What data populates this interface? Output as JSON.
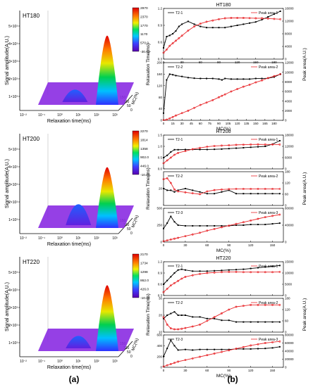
{
  "left_panels": [
    {
      "id": "HT180",
      "label": "HT180",
      "colorbar_ticks": [
        "2970",
        "2370",
        "1770",
        "1170",
        "570.0",
        "-30.00"
      ],
      "peak_height": 0.82,
      "small_peak_height": 0.16,
      "small_x": 0.32
    },
    {
      "id": "HT200",
      "label": "HT200",
      "colorbar_ticks": [
        "2270",
        "1814",
        "1358",
        "902.0",
        "446.0",
        "-10.00"
      ],
      "peak_height": 0.72,
      "small_peak_height": 0.27,
      "small_x": 0.36
    },
    {
      "id": "HT220",
      "label": "HT220",
      "colorbar_ticks": [
        "2170",
        "1734",
        "1298",
        "862.0",
        "426.0",
        "-10.00"
      ],
      "peak_height": 0.78,
      "small_peak_height": 0.16,
      "small_x": 0.36
    }
  ],
  "left_common": {
    "ylabel": "Signal amplitude(A.U.)",
    "xlabel": "Relaxation time(ms)",
    "mc_label": "MC(%)",
    "y_ticks": [
      "5×10³",
      "4×10³",
      "3×10³",
      "2×10³",
      "1×10³"
    ],
    "x_ticks": [
      "10⁻²",
      "10⁻¹",
      "10⁰",
      "10¹",
      "10²",
      "10³"
    ],
    "mc_ticks": [
      "150",
      "100",
      "50",
      "0"
    ]
  },
  "right_common": {
    "xlabel": "MC(%)",
    "ylabel_left": "Relaxation Time(ms)",
    "ylabel_right": "Peak area(A.U.)"
  },
  "panel_labels": {
    "a": "(a)",
    "b": "(b)"
  },
  "chart_data": [
    {
      "type": "line",
      "title": "HT180",
      "subplot": "T2-1",
      "x": [
        0,
        5,
        10,
        15,
        20,
        25,
        30,
        40,
        50,
        60,
        70,
        80,
        90,
        100,
        110,
        120,
        130,
        140,
        150,
        160,
        170,
        180,
        190
      ],
      "series": [
        {
          "name": "T2-1",
          "axis": "left",
          "values": [
            0.5,
            0.7,
            0.72,
            0.75,
            0.8,
            0.88,
            0.92,
            0.97,
            0.92,
            0.88,
            0.86,
            0.86,
            0.86,
            0.86,
            0.88,
            0.9,
            0.92,
            0.94,
            0.96,
            1.0,
            1.05,
            1.1,
            1.15
          ]
        },
        {
          "name": "Peak area-1",
          "axis": "right",
          "values": [
            2000,
            3000,
            4200,
            5000,
            5800,
            6600,
            7400,
            9000,
            10300,
            11200,
            11800,
            12200,
            12600,
            12900,
            13000,
            13000,
            13000,
            12950,
            12900,
            12900,
            12800,
            12700,
            12600
          ]
        }
      ],
      "ylim_left": [
        0.3,
        1.2
      ],
      "yticks_left": [
        "0.3",
        "0.6",
        "0.9",
        "1.2"
      ],
      "ylim_right": [
        0,
        16000
      ],
      "yticks_right": [
        "0",
        "4000",
        "8000",
        "12000",
        "16000"
      ],
      "xlim": [
        0,
        195
      ],
      "xticks": [
        0,
        30,
        60,
        90,
        120,
        150,
        180
      ]
    },
    {
      "type": "line",
      "title": "",
      "subplot": "T2-2",
      "x": [
        0,
        5,
        10,
        15,
        20,
        30,
        40,
        50,
        60,
        70,
        80,
        90,
        95,
        100,
        110,
        120,
        130,
        140,
        150,
        160,
        170,
        180,
        190
      ],
      "series": [
        {
          "name": "T2-2",
          "axis": "left",
          "values": [
            25,
            140,
            160,
            158,
            155,
            152,
            148,
            146,
            145,
            145,
            145,
            143,
            140,
            145,
            143,
            143,
            143,
            143,
            145,
            145,
            146,
            150,
            160
          ]
        },
        {
          "name": "Peak area-2",
          "axis": "right",
          "values": [
            50,
            150,
            400,
            700,
            1000,
            1500,
            2000,
            2600,
            3200,
            3700,
            4200,
            4800,
            5100,
            5400,
            6000,
            6500,
            7000,
            7400,
            7900,
            8300,
            8800,
            9200,
            9600
          ]
        }
      ],
      "ylim_left": [
        0,
        200
      ],
      "yticks_left": [
        "0",
        "40",
        "80",
        "120",
        "160",
        "200"
      ],
      "ylim_right": [
        0,
        12000
      ],
      "yticks_right": [
        "0",
        "2000",
        "4000",
        "6000",
        "8000",
        "10000",
        "12000"
      ],
      "xlim": [
        0,
        195
      ],
      "xticks": [
        0,
        15,
        30,
        45,
        60,
        75,
        90,
        105,
        120,
        135,
        150,
        165,
        180
      ]
    },
    {
      "type": "line",
      "title": "HT200",
      "subplot": "T2-1",
      "x": [
        0,
        5,
        10,
        15,
        20,
        30,
        40,
        50,
        60,
        70,
        80,
        90,
        100,
        110,
        120,
        130,
        140,
        150,
        160
      ],
      "series": [
        {
          "name": "T2-1",
          "axis": "left",
          "values": [
            0.5,
            0.6,
            0.75,
            0.85,
            0.85,
            0.86,
            0.86,
            0.86,
            0.86,
            0.87,
            0.88,
            0.9,
            0.92,
            0.94,
            0.96,
            0.98,
            1.0,
            1.1,
            1.25
          ]
        },
        {
          "name": "Peak area-1",
          "axis": "right",
          "values": [
            3000,
            4500,
            6000,
            7500,
            8500,
            9500,
            10500,
            11200,
            11800,
            12200,
            12400,
            12600,
            12800,
            12900,
            13000,
            13050,
            13000,
            13000,
            13000
          ]
        }
      ],
      "ylim_left": [
        0.0,
        1.5
      ],
      "yticks_left": [
        "0.0",
        "0.5",
        "1.0",
        "1.5"
      ],
      "ylim_right": [
        0,
        18000
      ],
      "yticks_right": [
        "0",
        "6000",
        "12000",
        "18000"
      ],
      "xlim": [
        0,
        165
      ],
      "xticks": [
        0,
        30,
        60,
        90,
        120,
        150
      ]
    },
    {
      "type": "line",
      "title": "",
      "subplot": "T2-2",
      "x": [
        0,
        5,
        10,
        15,
        20,
        30,
        40,
        50,
        60,
        70,
        80,
        90,
        100,
        110,
        120,
        130,
        140,
        150,
        160
      ],
      "series": [
        {
          "name": "T2-2",
          "axis": "left",
          "values": [
            20,
            19,
            19,
            18,
            19,
            20,
            19,
            18,
            17,
            17,
            18,
            19,
            17,
            17,
            17,
            17,
            17,
            17,
            17
          ]
        },
        {
          "name": "Peak area-2",
          "axis": "right",
          "values": [
            140,
            145,
            120,
            85,
            75,
            70,
            65,
            60,
            75,
            82,
            85,
            87,
            88,
            88,
            88,
            88,
            88,
            88,
            88
          ]
        }
      ],
      "ylim_left": [
        10,
        30
      ],
      "yticks_left": [
        "20"
      ],
      "ylim_right": [
        0,
        180
      ],
      "yticks_right": [
        "0",
        "60",
        "120",
        "180"
      ],
      "xlim": [
        0,
        165
      ],
      "xticks": [
        0,
        30,
        60,
        90,
        120,
        150
      ]
    },
    {
      "type": "line",
      "title": "",
      "subplot": "T2-3",
      "x": [
        0,
        5,
        10,
        15,
        20,
        30,
        40,
        50,
        60,
        70,
        80,
        90,
        100,
        110,
        120,
        130,
        140,
        150,
        160
      ],
      "series": [
        {
          "name": "T2-3",
          "axis": "left",
          "values": [
            200,
            280,
            380,
            300,
            250,
            240,
            240,
            240,
            240,
            240,
            240,
            240,
            250,
            250,
            260,
            260,
            260,
            270,
            280
          ]
        },
        {
          "name": "Peak area-3",
          "axis": "right",
          "values": [
            2000,
            4000,
            6000,
            8000,
            10000,
            14000,
            18000,
            22000,
            27000,
            31000,
            35000,
            39000,
            43000,
            47000,
            51000,
            55000,
            59000,
            62000,
            65000
          ]
        }
      ],
      "ylim_left": [
        0,
        500
      ],
      "yticks_left": [
        "0",
        "250",
        "500"
      ],
      "ylim_right": [
        0,
        80000
      ],
      "yticks_right": [
        "0",
        "40000",
        "80000"
      ],
      "xlim": [
        0,
        165
      ],
      "xticks": [
        0,
        30,
        60,
        90,
        120,
        150
      ]
    },
    {
      "type": "line",
      "title": "HT220",
      "subplot": "T2-1",
      "x": [
        0,
        5,
        10,
        15,
        20,
        25,
        30,
        40,
        50,
        60,
        70,
        80,
        90,
        100,
        110,
        120,
        130,
        140,
        150,
        160
      ],
      "series": [
        {
          "name": "T2-1",
          "axis": "left",
          "values": [
            0.6,
            0.7,
            0.8,
            0.9,
            0.98,
            1.0,
            0.98,
            0.95,
            0.95,
            0.95,
            0.96,
            0.97,
            0.98,
            0.99,
            1.0,
            1.02,
            1.04,
            1.06,
            1.08,
            1.1
          ]
        },
        {
          "name": "Peak area-1",
          "axis": "right",
          "values": [
            1500,
            3000,
            4500,
            5500,
            6500,
            7500,
            8300,
            9000,
            9600,
            10000,
            10200,
            10400,
            10500,
            10500,
            10400,
            10400,
            10400,
            10400,
            10400,
            10500
          ]
        }
      ],
      "ylim_left": [
        0.3,
        1.2
      ],
      "yticks_left": [
        "0.3",
        "0.6",
        "0.9",
        "1.2"
      ],
      "ylim_right": [
        0,
        15000
      ],
      "yticks_right": [
        "0",
        "5000",
        "10000",
        "15000"
      ],
      "xlim": [
        0,
        165
      ],
      "xticks": [
        0,
        30,
        60,
        90,
        120,
        150
      ]
    },
    {
      "type": "line",
      "title": "",
      "subplot": "T2-2",
      "x": [
        0,
        5,
        10,
        15,
        20,
        25,
        30,
        40,
        50,
        60,
        70,
        80,
        90,
        100,
        110,
        120,
        130,
        140,
        150,
        160
      ],
      "series": [
        {
          "name": "T2-2",
          "axis": "left",
          "values": [
            18,
            20,
            21,
            22,
            20,
            20,
            20,
            19,
            19,
            18,
            18,
            17,
            17,
            16,
            16,
            16,
            16,
            16,
            16,
            16
          ]
        },
        {
          "name": "Peak area-2",
          "axis": "right",
          "values": [
            80,
            40,
            20,
            15,
            15,
            18,
            22,
            30,
            40,
            60,
            80,
            100,
            120,
            135,
            140,
            145,
            145,
            145,
            145,
            145
          ]
        }
      ],
      "ylim_left": [
        10,
        30
      ],
      "yticks_left": [
        "10",
        "20",
        "30"
      ],
      "ylim_right": [
        0,
        180
      ],
      "yticks_right": [
        "0",
        "60",
        "120",
        "180"
      ],
      "xlim": [
        0,
        165
      ],
      "xticks": [
        0,
        30,
        60,
        90,
        120,
        150
      ]
    },
    {
      "type": "line",
      "title": "",
      "subplot": "T2-3",
      "x": [
        0,
        5,
        10,
        15,
        20,
        30,
        40,
        50,
        60,
        70,
        80,
        90,
        100,
        110,
        120,
        130,
        140,
        150,
        160
      ],
      "series": [
        {
          "name": "T2-3",
          "axis": "left",
          "values": [
            200,
            350,
            500,
            400,
            320,
            330,
            320,
            330,
            330,
            330,
            330,
            330,
            340,
            340,
            340,
            345,
            350,
            360,
            380
          ]
        },
        {
          "name": "Peak area-3",
          "axis": "right",
          "values": [
            2000,
            5000,
            8000,
            11000,
            14000,
            18000,
            22000,
            26000,
            30000,
            34000,
            38000,
            42000,
            46000,
            50000,
            54000,
            57000,
            60000,
            62000,
            64000
          ]
        }
      ],
      "ylim_left": [
        0,
        600
      ],
      "yticks_left": [
        "0",
        "200",
        "400",
        "600"
      ],
      "ylim_right": [
        0,
        80000
      ],
      "yticks_right": [
        "0",
        "20000",
        "40000",
        "60000",
        "80000"
      ],
      "xlim": [
        0,
        165
      ],
      "xticks": [
        0,
        30,
        60,
        90,
        120,
        150
      ]
    }
  ],
  "colors": {
    "black_series": "#000000",
    "red_series": "#e8262a",
    "surface_base": "#8a2be2"
  }
}
